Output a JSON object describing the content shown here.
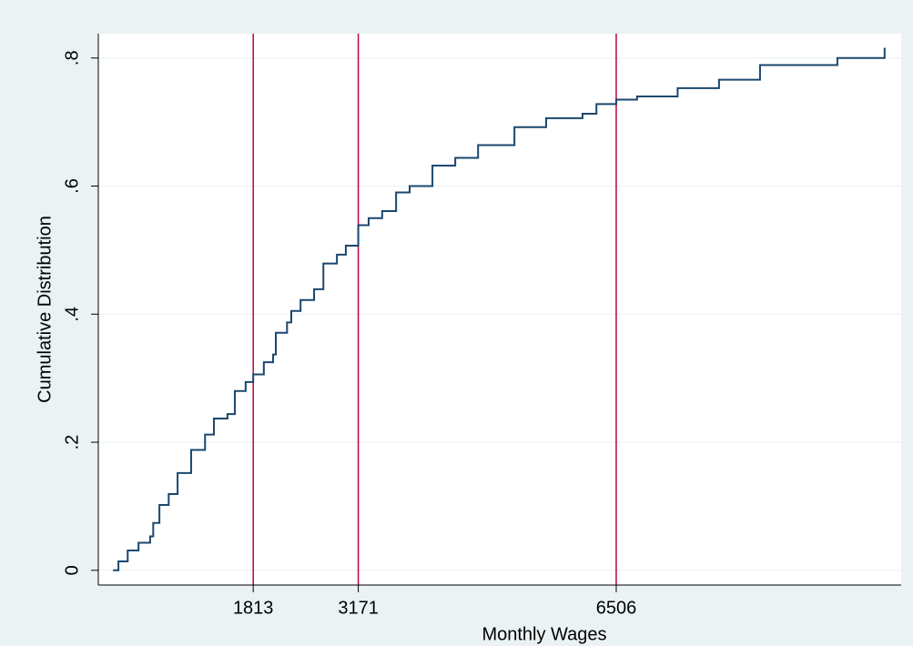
{
  "chart_data": {
    "type": "line",
    "step": true,
    "x_label": "Monthly Wages",
    "y_label": "Cumulative Distribution",
    "x": [
      0,
      70,
      190,
      330,
      480,
      520,
      600,
      720,
      835,
      1010,
      1190,
      1305,
      1480,
      1575,
      1715,
      1813,
      1950,
      2070,
      2105,
      2250,
      2305,
      2425,
      2600,
      2720,
      2895,
      3010,
      3171,
      3305,
      3480,
      3660,
      3835,
      4130,
      4425,
      4720,
      5190,
      5600,
      6070,
      6250,
      6506,
      6775,
      7300,
      7835,
      8365,
      9365,
      9976
    ],
    "values": [
      0,
      0.014,
      0.031,
      0.043,
      0.053,
      0.074,
      0.102,
      0.119,
      0.152,
      0.188,
      0.212,
      0.237,
      0.244,
      0.28,
      0.294,
      0.306,
      0.325,
      0.337,
      0.371,
      0.387,
      0.405,
      0.422,
      0.439,
      0.479,
      0.493,
      0.507,
      0.539,
      0.55,
      0.561,
      0.59,
      0.6,
      0.632,
      0.644,
      0.664,
      0.692,
      0.706,
      0.713,
      0.728,
      0.735,
      0.74,
      0.753,
      0.766,
      0.789,
      0.8,
      0.816
    ],
    "color": "#1a476f",
    "reference_lines": [
      1813,
      3171,
      6506
    ],
    "reference_color": "#c10534",
    "xlim": [
      -190,
      10190
    ],
    "xticks": [
      1813,
      3171,
      6506
    ],
    "ylim": [
      -0.023,
      0.838
    ],
    "yticks": [
      0,
      {
        "value": 0.2,
        "label": ".2"
      },
      {
        "value": 0.4,
        "label": ".4"
      },
      {
        "value": 0.6,
        "label": ".6"
      },
      {
        "value": 0.8,
        "label": ".8"
      }
    ],
    "grid": true
  }
}
